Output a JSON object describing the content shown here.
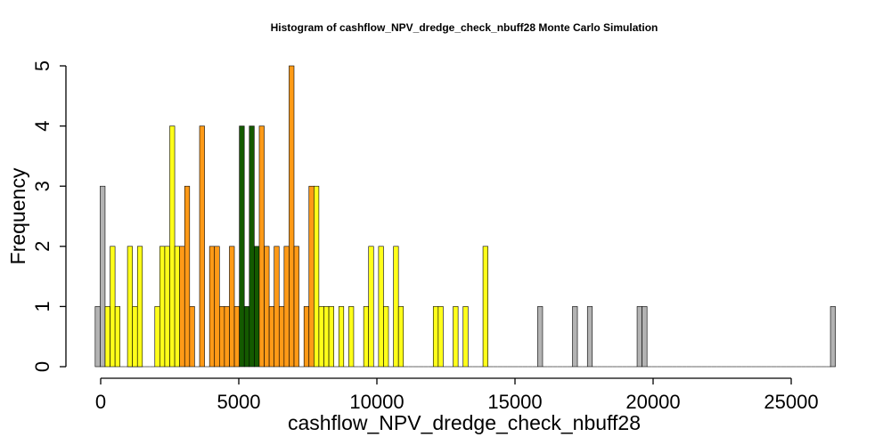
{
  "chart_data": {
    "type": "bar",
    "title": "Histogram of  cashflow_NPV_dredge_check_nbuff28  Monte Carlo Simulation",
    "xlabel": "cashflow_NPV_dredge_check_nbuff28",
    "ylabel": "Frequency",
    "bin_start": -200,
    "bin_width": 179,
    "xlim": [
      -200,
      26600
    ],
    "ylim": [
      0,
      5
    ],
    "xticks": [
      0,
      5000,
      10000,
      15000,
      20000,
      25000
    ],
    "xtick_labels": [
      "0",
      "5000",
      "10000",
      "15000",
      "20000",
      "25000"
    ],
    "yticks": [
      0,
      1,
      2,
      3,
      4,
      5
    ],
    "ytick_labels": [
      "0",
      "1",
      "2",
      "3",
      "4",
      "5"
    ],
    "colors": {
      "gray": "#b3b3b3",
      "yellow": "#ffff1a",
      "orange": "#ff9a17",
      "green": "#145a00",
      "outline": "#000000"
    },
    "bins": [
      {
        "x": -110,
        "count": 1,
        "color": "gray"
      },
      {
        "x": 70,
        "count": 3,
        "color": "gray"
      },
      {
        "x": 250,
        "count": 1,
        "color": "yellow"
      },
      {
        "x": 430,
        "count": 2,
        "color": "yellow"
      },
      {
        "x": 610,
        "count": 1,
        "color": "yellow"
      },
      {
        "x": 1060,
        "count": 2,
        "color": "yellow"
      },
      {
        "x": 1240,
        "count": 1,
        "color": "yellow"
      },
      {
        "x": 1420,
        "count": 2,
        "color": "yellow"
      },
      {
        "x": 2050,
        "count": 1,
        "color": "yellow"
      },
      {
        "x": 2230,
        "count": 2,
        "color": "yellow"
      },
      {
        "x": 2410,
        "count": 2,
        "color": "yellow"
      },
      {
        "x": 2590,
        "count": 4,
        "color": "yellow"
      },
      {
        "x": 2770,
        "count": 2,
        "color": "yellow"
      },
      {
        "x": 2950,
        "count": 2,
        "color": "orange"
      },
      {
        "x": 3130,
        "count": 3,
        "color": "orange"
      },
      {
        "x": 3310,
        "count": 1,
        "color": "orange"
      },
      {
        "x": 3670,
        "count": 4,
        "color": "orange"
      },
      {
        "x": 4030,
        "count": 2,
        "color": "orange"
      },
      {
        "x": 4210,
        "count": 2,
        "color": "orange"
      },
      {
        "x": 4390,
        "count": 1,
        "color": "orange"
      },
      {
        "x": 4570,
        "count": 1,
        "color": "orange"
      },
      {
        "x": 4750,
        "count": 2,
        "color": "orange"
      },
      {
        "x": 4930,
        "count": 1,
        "color": "orange"
      },
      {
        "x": 5110,
        "count": 4,
        "color": "green"
      },
      {
        "x": 5290,
        "count": 1,
        "color": "green"
      },
      {
        "x": 5470,
        "count": 4,
        "color": "green"
      },
      {
        "x": 5650,
        "count": 2,
        "color": "green"
      },
      {
        "x": 5830,
        "count": 4,
        "color": "orange"
      },
      {
        "x": 6010,
        "count": 2,
        "color": "orange"
      },
      {
        "x": 6190,
        "count": 1,
        "color": "orange"
      },
      {
        "x": 6370,
        "count": 2,
        "color": "orange"
      },
      {
        "x": 6550,
        "count": 1,
        "color": "orange"
      },
      {
        "x": 6730,
        "count": 2,
        "color": "orange"
      },
      {
        "x": 6910,
        "count": 5,
        "color": "orange"
      },
      {
        "x": 7090,
        "count": 2,
        "color": "orange"
      },
      {
        "x": 7450,
        "count": 1,
        "color": "orange"
      },
      {
        "x": 7630,
        "count": 3,
        "color": "orange"
      },
      {
        "x": 7810,
        "count": 3,
        "color": "yellow"
      },
      {
        "x": 7990,
        "count": 1,
        "color": "yellow"
      },
      {
        "x": 8170,
        "count": 1,
        "color": "yellow"
      },
      {
        "x": 8350,
        "count": 1,
        "color": "yellow"
      },
      {
        "x": 8710,
        "count": 1,
        "color": "yellow"
      },
      {
        "x": 9070,
        "count": 1,
        "color": "yellow"
      },
      {
        "x": 9610,
        "count": 1,
        "color": "yellow"
      },
      {
        "x": 9790,
        "count": 2,
        "color": "yellow"
      },
      {
        "x": 10150,
        "count": 2,
        "color": "yellow"
      },
      {
        "x": 10330,
        "count": 1,
        "color": "yellow"
      },
      {
        "x": 10690,
        "count": 2,
        "color": "yellow"
      },
      {
        "x": 10870,
        "count": 1,
        "color": "yellow"
      },
      {
        "x": 12130,
        "count": 1,
        "color": "yellow"
      },
      {
        "x": 12310,
        "count": 1,
        "color": "yellow"
      },
      {
        "x": 12850,
        "count": 1,
        "color": "yellow"
      },
      {
        "x": 13210,
        "count": 1,
        "color": "yellow"
      },
      {
        "x": 13930,
        "count": 2,
        "color": "yellow"
      },
      {
        "x": 15910,
        "count": 1,
        "color": "gray"
      },
      {
        "x": 17170,
        "count": 1,
        "color": "gray"
      },
      {
        "x": 17710,
        "count": 1,
        "color": "gray"
      },
      {
        "x": 19510,
        "count": 1,
        "color": "gray"
      },
      {
        "x": 19690,
        "count": 1,
        "color": "gray"
      },
      {
        "x": 26510,
        "count": 1,
        "color": "gray"
      }
    ]
  }
}
